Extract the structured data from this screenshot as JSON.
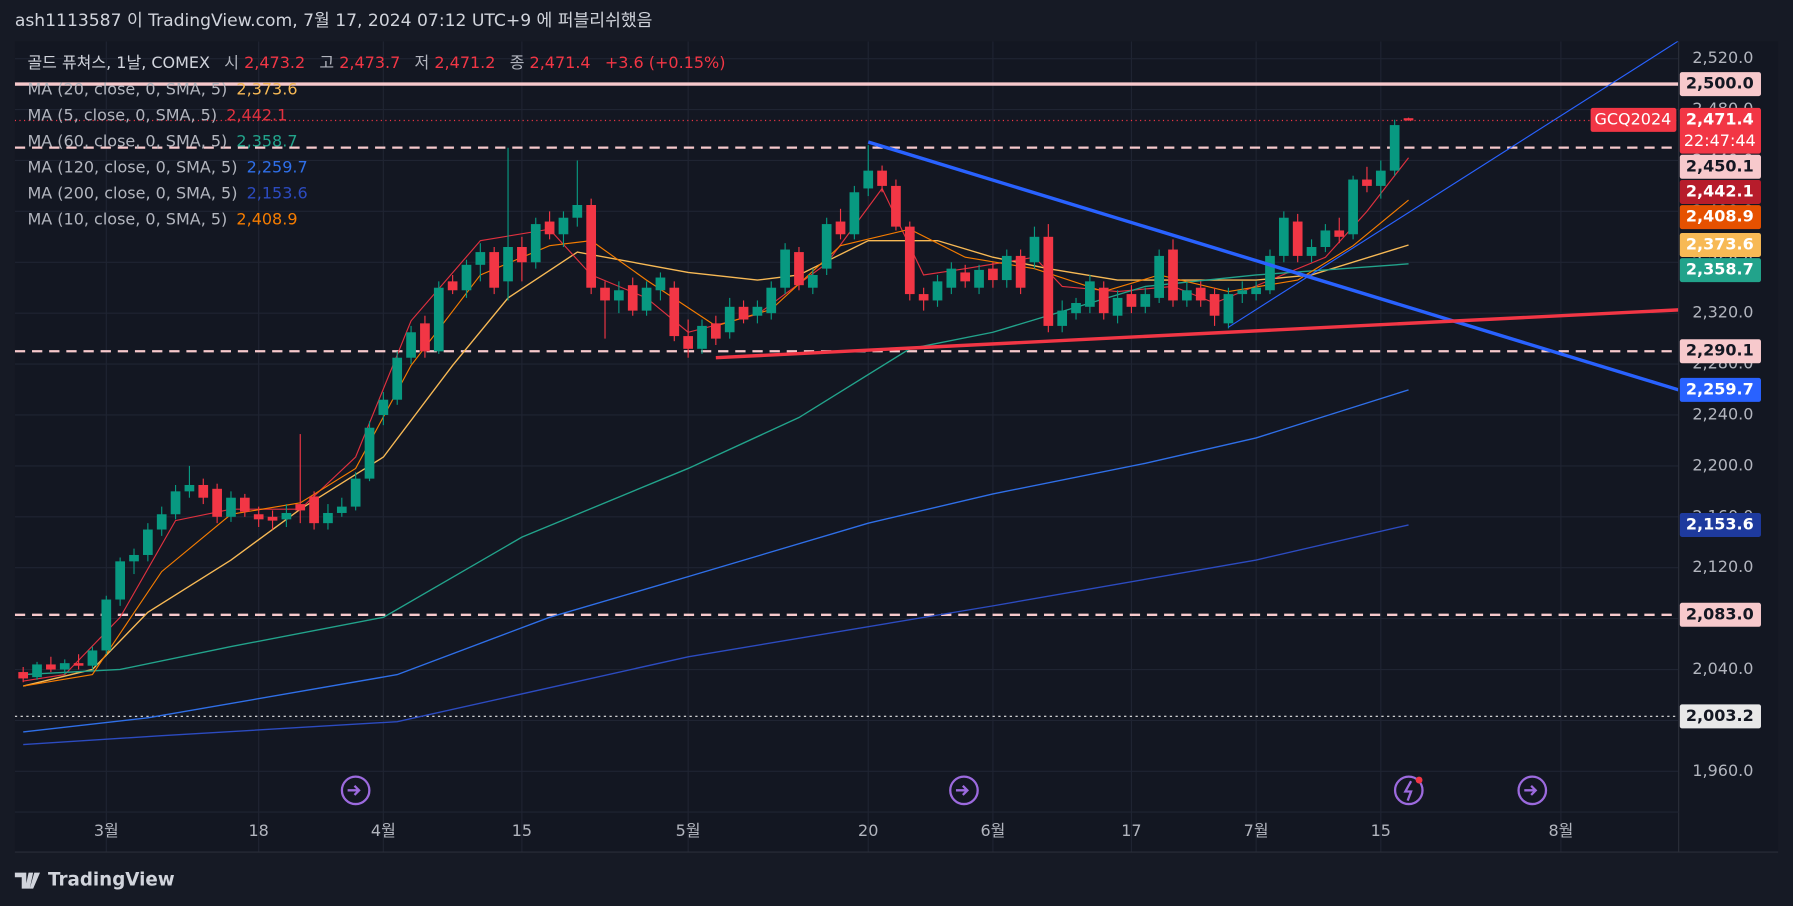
{
  "header": {
    "publisher": "ash1113587 이 TradingView.com, 7월 17, 2024 07:12 UTC+9 에 퍼블리쉬했음",
    "brand": "TradingView"
  },
  "chart_data": {
    "type": "candlestick",
    "title": "골드 퓨쳐스, 1날, COMEX",
    "legend": {
      "open_label": "시",
      "open": "2,473.2",
      "high_label": "고",
      "high": "2,473.7",
      "low_label": "저",
      "low": "2,471.2",
      "close_label": "종",
      "close": "2,471.4",
      "change": "+3.6 (+0.15%)"
    },
    "symbol": "GCQ2024",
    "countdown": "22:47:44",
    "up_color": "#089981",
    "down_color": "#f23645",
    "ohlc": [
      [
        2038,
        2042,
        2030,
        2033
      ],
      [
        2034,
        2046,
        2032,
        2044
      ],
      [
        2044,
        2050,
        2038,
        2040
      ],
      [
        2040,
        2048,
        2036,
        2045
      ],
      [
        2045,
        2052,
        2040,
        2043
      ],
      [
        2043,
        2058,
        2040,
        2055
      ],
      [
        2055,
        2098,
        2052,
        2095
      ],
      [
        2095,
        2128,
        2090,
        2125
      ],
      [
        2125,
        2135,
        2115,
        2130
      ],
      [
        2130,
        2155,
        2125,
        2150
      ],
      [
        2150,
        2168,
        2145,
        2162
      ],
      [
        2162,
        2185,
        2158,
        2180
      ],
      [
        2180,
        2200,
        2175,
        2185
      ],
      [
        2185,
        2190,
        2170,
        2175
      ],
      [
        2182,
        2186,
        2155,
        2160
      ],
      [
        2160,
        2180,
        2156,
        2175
      ],
      [
        2175,
        2178,
        2160,
        2164
      ],
      [
        2162,
        2168,
        2152,
        2158
      ],
      [
        2160,
        2165,
        2150,
        2157
      ],
      [
        2158,
        2170,
        2152,
        2163
      ],
      [
        2170,
        2225,
        2155,
        2165
      ],
      [
        2176,
        2180,
        2150,
        2155
      ],
      [
        2155,
        2170,
        2150,
        2163
      ],
      [
        2163,
        2175,
        2160,
        2168
      ],
      [
        2168,
        2195,
        2165,
        2190
      ],
      [
        2190,
        2235,
        2188,
        2230
      ],
      [
        2240,
        2258,
        2232,
        2252
      ],
      [
        2252,
        2290,
        2248,
        2285
      ],
      [
        2285,
        2310,
        2280,
        2305
      ],
      [
        2312,
        2318,
        2285,
        2290
      ],
      [
        2290,
        2345,
        2288,
        2340
      ],
      [
        2345,
        2350,
        2335,
        2338
      ],
      [
        2338,
        2362,
        2332,
        2358
      ],
      [
        2358,
        2375,
        2345,
        2368
      ],
      [
        2368,
        2372,
        2335,
        2340
      ],
      [
        2345,
        2450,
        2330,
        2372
      ],
      [
        2372,
        2380,
        2345,
        2360
      ],
      [
        2360,
        2395,
        2355,
        2390
      ],
      [
        2392,
        2400,
        2378,
        2382
      ],
      [
        2382,
        2400,
        2372,
        2395
      ],
      [
        2395,
        2440,
        2388,
        2405
      ],
      [
        2405,
        2410,
        2335,
        2340
      ],
      [
        2340,
        2345,
        2300,
        2330
      ],
      [
        2330,
        2345,
        2320,
        2338
      ],
      [
        2342,
        2348,
        2318,
        2322
      ],
      [
        2322,
        2345,
        2318,
        2340
      ],
      [
        2338,
        2352,
        2330,
        2348
      ],
      [
        2340,
        2345,
        2298,
        2302
      ],
      [
        2302,
        2315,
        2285,
        2292
      ],
      [
        2292,
        2315,
        2288,
        2310
      ],
      [
        2312,
        2318,
        2295,
        2300
      ],
      [
        2305,
        2332,
        2300,
        2325
      ],
      [
        2325,
        2330,
        2312,
        2315
      ],
      [
        2318,
        2330,
        2312,
        2325
      ],
      [
        2320,
        2345,
        2315,
        2340
      ],
      [
        2340,
        2375,
        2335,
        2370
      ],
      [
        2368,
        2372,
        2338,
        2342
      ],
      [
        2340,
        2355,
        2335,
        2350
      ],
      [
        2355,
        2395,
        2350,
        2390
      ],
      [
        2392,
        2402,
        2378,
        2382
      ],
      [
        2382,
        2420,
        2378,
        2415
      ],
      [
        2418,
        2452,
        2412,
        2432
      ],
      [
        2432,
        2436,
        2415,
        2420
      ],
      [
        2420,
        2425,
        2385,
        2388
      ],
      [
        2388,
        2392,
        2330,
        2335
      ],
      [
        2335,
        2340,
        2322,
        2330
      ],
      [
        2330,
        2350,
        2325,
        2345
      ],
      [
        2340,
        2360,
        2335,
        2355
      ],
      [
        2352,
        2358,
        2340,
        2345
      ],
      [
        2340,
        2358,
        2335,
        2354
      ],
      [
        2355,
        2360,
        2340,
        2346
      ],
      [
        2346,
        2370,
        2340,
        2365
      ],
      [
        2365,
        2370,
        2335,
        2340
      ],
      [
        2360,
        2388,
        2355,
        2380
      ],
      [
        2380,
        2390,
        2305,
        2310
      ],
      [
        2310,
        2330,
        2305,
        2322
      ],
      [
        2320,
        2332,
        2315,
        2328
      ],
      [
        2325,
        2350,
        2320,
        2345
      ],
      [
        2340,
        2345,
        2315,
        2320
      ],
      [
        2318,
        2338,
        2312,
        2332
      ],
      [
        2335,
        2342,
        2320,
        2325
      ],
      [
        2325,
        2340,
        2320,
        2335
      ],
      [
        2332,
        2370,
        2328,
        2365
      ],
      [
        2370,
        2378,
        2325,
        2330
      ],
      [
        2330,
        2345,
        2325,
        2338
      ],
      [
        2340,
        2345,
        2325,
        2330
      ],
      [
        2335,
        2340,
        2310,
        2318
      ],
      [
        2312,
        2340,
        2308,
        2335
      ],
      [
        2335,
        2345,
        2328,
        2338
      ],
      [
        2335,
        2345,
        2330,
        2340
      ],
      [
        2338,
        2370,
        2335,
        2365
      ],
      [
        2365,
        2400,
        2360,
        2395
      ],
      [
        2392,
        2398,
        2360,
        2365
      ],
      [
        2365,
        2378,
        2360,
        2372
      ],
      [
        2372,
        2390,
        2368,
        2385
      ],
      [
        2385,
        2395,
        2375,
        2380
      ],
      [
        2382,
        2428,
        2378,
        2425
      ],
      [
        2425,
        2435,
        2415,
        2420
      ],
      [
        2420,
        2440,
        2410,
        2432
      ],
      [
        2432,
        2472,
        2428,
        2467.8
      ],
      [
        2473.2,
        2473.7,
        2471.2,
        2471.4
      ]
    ],
    "series": [
      {
        "name": "MA (20, close, 0, SMA, 5)",
        "color": "#f7b955",
        "width": 1.2,
        "price_label": true,
        "last_label": "2,373.6",
        "x": [
          0,
          5,
          9,
          15,
          20,
          26,
          31,
          35,
          40,
          45,
          48,
          53,
          56,
          61,
          66,
          70,
          74,
          79,
          84,
          89,
          93,
          100
        ],
        "values": [
          2027,
          2040,
          2085,
          2126,
          2166,
          2207,
          2279,
          2332,
          2368,
          2358,
          2352,
          2346,
          2350,
          2377,
          2377,
          2364,
          2355,
          2346,
          2346,
          2346,
          2350,
          2373.6
        ]
      },
      {
        "name": "MA (5, close, 0, SMA, 5)",
        "color": "#e0313f",
        "badge_color": "#b71c2b",
        "width": 1,
        "price_label": true,
        "last_label": "2,442.1",
        "x": [
          0,
          3,
          7,
          11,
          15,
          20,
          24,
          28,
          33,
          38,
          41,
          45,
          48,
          53,
          58,
          62,
          65,
          68,
          73,
          75,
          79,
          83,
          86,
          90,
          94,
          97,
          100
        ],
        "values": [
          2031,
          2036,
          2081,
          2157,
          2166,
          2166,
          2207,
          2314,
          2377,
          2386,
          2350,
          2332,
          2305,
          2319,
          2359,
          2418,
          2350,
          2355,
          2364,
          2341,
          2337,
          2341,
          2328,
          2346,
          2364,
          2400,
          2442.1
        ]
      },
      {
        "name": "MA (60, close, 0, SMA, 5)",
        "color": "#22a38b",
        "width": 1.2,
        "price_label": true,
        "last_label": "2,358.7",
        "x": [
          0,
          7,
          15,
          26,
          36,
          48,
          56,
          64,
          70,
          81,
          89,
          100
        ],
        "values": [
          2036,
          2040,
          2058,
          2081,
          2144,
          2198,
          2238,
          2292,
          2305,
          2341,
          2350,
          2358.7
        ]
      },
      {
        "name": "MA (120, close, 0, SMA, 5)",
        "color": "#2f6fe8",
        "width": 1.2,
        "price_label": false,
        "last_label": "2,259.7",
        "x": [
          0,
          9,
          27,
          38,
          48,
          61,
          70,
          81,
          89,
          100
        ],
        "values": [
          1991,
          2002,
          2036,
          2081,
          2113,
          2155,
          2178,
          2202,
          2222,
          2259.7
        ]
      },
      {
        "name": "MA (200, close, 0, SMA, 5)",
        "color": "#2c4bc0",
        "badge_color": "#1e3a9e",
        "width": 1.2,
        "price_label": true,
        "last_label": "2,153.6",
        "x": [
          0,
          10,
          27,
          48,
          70,
          89,
          100
        ],
        "values": [
          1981,
          1988,
          1999,
          2050,
          2090,
          2126,
          2153.6
        ]
      },
      {
        "name": "MA (10, close, 0, SMA, 5)",
        "color": "#f57c00",
        "badge_color": "#e65100",
        "width": 1,
        "price_label": true,
        "last_label": "2,408.9",
        "x": [
          0,
          5,
          10,
          15,
          20,
          24,
          28,
          33,
          38,
          41,
          45,
          50,
          54,
          59,
          64,
          68,
          73,
          78,
          82,
          87,
          92,
          96,
          100
        ],
        "values": [
          2027,
          2036,
          2117,
          2162,
          2171,
          2198,
          2279,
          2350,
          2373,
          2377,
          2346,
          2310,
          2323,
          2373,
          2386,
          2364,
          2355,
          2337,
          2350,
          2337,
          2346,
          2373,
          2408.9
        ]
      }
    ],
    "levels": [
      {
        "value": 2500,
        "label": "2,500.0",
        "style": "solid",
        "color": "#f7c9cc"
      },
      {
        "value": 2450.1,
        "label": "2,450.1",
        "style": "dashed",
        "color": "#f7c9cc"
      },
      {
        "value": 2290.1,
        "label": "2,290.1",
        "style": "dashed",
        "color": "#f7c9cc"
      },
      {
        "value": 2083,
        "label": "2,083.0",
        "style": "dashed",
        "color": "#f7c9cc"
      },
      {
        "value": 2003.2,
        "label": "2,003.2",
        "style": "dotted",
        "color": "#e8e8e8"
      }
    ],
    "trendlines": [
      {
        "color": "#2962ff",
        "width": 3,
        "x": [
          61,
          119.5
        ],
        "values": [
          2454.5,
          2259.7
        ],
        "label": "2,259.7"
      },
      {
        "color": "#f23645",
        "width": 3,
        "x": [
          50,
          119.5
        ],
        "values": [
          2285,
          2322.6
        ]
      },
      {
        "color": "#2962ff",
        "width": 1,
        "x": [
          87,
          119.5
        ],
        "values": [
          2309,
          2534
        ]
      }
    ],
    "xlim": [
      -0.6,
      119.5
    ],
    "xticks": [
      {
        "value": 6,
        "label": "3월"
      },
      {
        "value": 17,
        "label": "18"
      },
      {
        "value": 26,
        "label": "4월"
      },
      {
        "value": 36,
        "label": "15"
      },
      {
        "value": 48,
        "label": "5월"
      },
      {
        "value": 61,
        "label": "20"
      },
      {
        "value": 70,
        "label": "6월"
      },
      {
        "value": 80,
        "label": "17"
      },
      {
        "value": 89,
        "label": "7월"
      },
      {
        "value": 98,
        "label": "15"
      },
      {
        "value": 111,
        "label": "8월"
      }
    ],
    "ylim": [
      1928,
      2530
    ],
    "yticks": [
      {
        "value": 1960,
        "label": "1,960.0"
      },
      {
        "value": 2000,
        "label": "2,000.0"
      },
      {
        "value": 2040,
        "label": "2,040.0"
      },
      {
        "value": 2080,
        "label": "2,080.0"
      },
      {
        "value": 2120,
        "label": "2,120.0"
      },
      {
        "value": 2160,
        "label": "2,160.0"
      },
      {
        "value": 2200,
        "label": "2,200.0"
      },
      {
        "value": 2240,
        "label": "2,240.0"
      },
      {
        "value": 2280,
        "label": "2,280.0"
      },
      {
        "value": 2320,
        "label": "2,320.0"
      },
      {
        "value": 2360,
        "label": "2,360.0"
      },
      {
        "value": 2400,
        "label": "2,400.0"
      },
      {
        "value": 2440,
        "label": "2,440.0"
      },
      {
        "value": 2480,
        "label": "2,480.0"
      },
      {
        "value": 2520,
        "label": "2,520.0"
      }
    ],
    "grid": true
  }
}
